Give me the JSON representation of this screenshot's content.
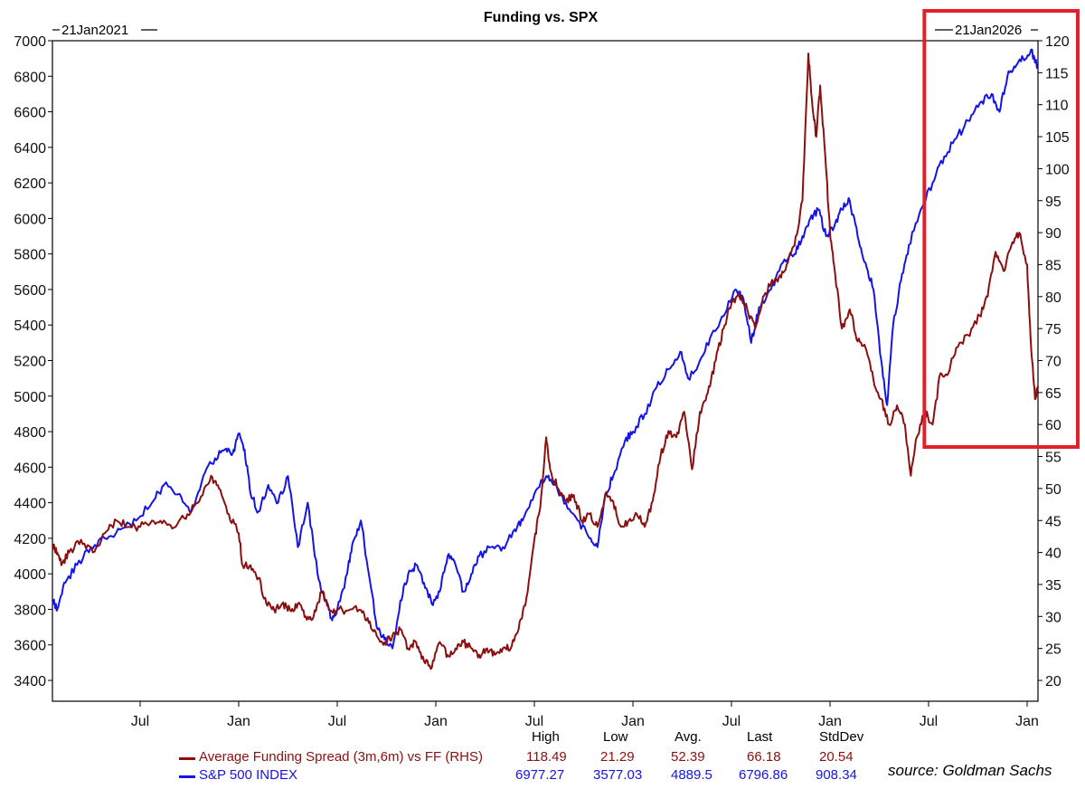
{
  "chart_data": {
    "type": "line",
    "title": "Funding vs. SPX",
    "start_date_label": "21Jan2021",
    "end_date_label": "21Jan2026",
    "x_tick_labels": [
      "Jul",
      "Jan",
      "Jul",
      "Jan",
      "Jul",
      "Jan",
      "Jul",
      "Jan",
      "Jul",
      "Jan"
    ],
    "x_tick_dates": [
      2021.5,
      2022.0,
      2022.5,
      2023.0,
      2023.5,
      2024.0,
      2024.5,
      2025.0,
      2025.5,
      2026.0
    ],
    "x_range": [
      2021.055,
      2026.055
    ],
    "y_left": {
      "min": 3300,
      "max": 7000,
      "ticks": [
        3400,
        3600,
        3800,
        4000,
        4200,
        4400,
        4600,
        4800,
        5000,
        5200,
        5400,
        5600,
        5800,
        6000,
        6200,
        6400,
        6600,
        6800,
        7000
      ]
    },
    "y_right": {
      "min": 16.6,
      "max": 121.0,
      "ticks": [
        20,
        25,
        30,
        35,
        40,
        45,
        50,
        55,
        60,
        65,
        70,
        75,
        80,
        85,
        90,
        95,
        100,
        105,
        110,
        115,
        120
      ]
    },
    "series": [
      {
        "name": "S&P 500 INDEX",
        "axis": "left",
        "color": "#1414e6",
        "points": [
          [
            2021.055,
            3850
          ],
          [
            2021.08,
            3800
          ],
          [
            2021.12,
            3950
          ],
          [
            2021.18,
            4050
          ],
          [
            2021.25,
            4150
          ],
          [
            2021.32,
            4200
          ],
          [
            2021.4,
            4250
          ],
          [
            2021.48,
            4300
          ],
          [
            2021.56,
            4400
          ],
          [
            2021.62,
            4500
          ],
          [
            2021.7,
            4450
          ],
          [
            2021.76,
            4350
          ],
          [
            2021.82,
            4550
          ],
          [
            2021.88,
            4650
          ],
          [
            2021.93,
            4700
          ],
          [
            2021.97,
            4680
          ],
          [
            2022.0,
            4790
          ],
          [
            2022.03,
            4700
          ],
          [
            2022.06,
            4450
          ],
          [
            2022.1,
            4350
          ],
          [
            2022.15,
            4500
          ],
          [
            2022.2,
            4400
          ],
          [
            2022.25,
            4550
          ],
          [
            2022.3,
            4150
          ],
          [
            2022.35,
            4400
          ],
          [
            2022.4,
            4000
          ],
          [
            2022.44,
            3850
          ],
          [
            2022.47,
            3750
          ],
          [
            2022.5,
            3800
          ],
          [
            2022.55,
            4000
          ],
          [
            2022.58,
            4180
          ],
          [
            2022.62,
            4300
          ],
          [
            2022.66,
            4000
          ],
          [
            2022.7,
            3700
          ],
          [
            2022.74,
            3630
          ],
          [
            2022.78,
            3580
          ],
          [
            2022.82,
            3850
          ],
          [
            2022.86,
            4000
          ],
          [
            2022.9,
            4050
          ],
          [
            2022.94,
            3950
          ],
          [
            2022.98,
            3830
          ],
          [
            2023.02,
            3900
          ],
          [
            2023.06,
            4100
          ],
          [
            2023.1,
            4050
          ],
          [
            2023.14,
            3900
          ],
          [
            2023.18,
            4000
          ],
          [
            2023.22,
            4100
          ],
          [
            2023.28,
            4150
          ],
          [
            2023.34,
            4150
          ],
          [
            2023.4,
            4250
          ],
          [
            2023.44,
            4300
          ],
          [
            2023.5,
            4450
          ],
          [
            2023.56,
            4550
          ],
          [
            2023.6,
            4500
          ],
          [
            2023.66,
            4400
          ],
          [
            2023.72,
            4300
          ],
          [
            2023.78,
            4200
          ],
          [
            2023.82,
            4150
          ],
          [
            2023.86,
            4450
          ],
          [
            2023.9,
            4550
          ],
          [
            2023.96,
            4750
          ],
          [
            2024.0,
            4800
          ],
          [
            2024.06,
            4900
          ],
          [
            2024.12,
            5050
          ],
          [
            2024.18,
            5150
          ],
          [
            2024.24,
            5250
          ],
          [
            2024.28,
            5100
          ],
          [
            2024.34,
            5200
          ],
          [
            2024.4,
            5350
          ],
          [
            2024.46,
            5450
          ],
          [
            2024.52,
            5600
          ],
          [
            2024.56,
            5550
          ],
          [
            2024.6,
            5300
          ],
          [
            2024.64,
            5500
          ],
          [
            2024.7,
            5600
          ],
          [
            2024.76,
            5750
          ],
          [
            2024.82,
            5800
          ],
          [
            2024.86,
            5900
          ],
          [
            2024.9,
            6000
          ],
          [
            2024.94,
            6050
          ],
          [
            2024.98,
            5900
          ],
          [
            2025.02,
            5950
          ],
          [
            2025.06,
            6050
          ],
          [
            2025.1,
            6100
          ],
          [
            2025.14,
            5900
          ],
          [
            2025.18,
            5750
          ],
          [
            2025.22,
            5600
          ],
          [
            2025.26,
            5200
          ],
          [
            2025.29,
            4950
          ],
          [
            2025.32,
            5400
          ],
          [
            2025.36,
            5650
          ],
          [
            2025.4,
            5850
          ],
          [
            2025.46,
            6050
          ],
          [
            2025.52,
            6200
          ],
          [
            2025.58,
            6350
          ],
          [
            2025.64,
            6450
          ],
          [
            2025.7,
            6550
          ],
          [
            2025.76,
            6650
          ],
          [
            2025.82,
            6700
          ],
          [
            2025.86,
            6600
          ],
          [
            2025.9,
            6800
          ],
          [
            2025.94,
            6850
          ],
          [
            2025.98,
            6900
          ],
          [
            2026.02,
            6950
          ],
          [
            2026.055,
            6850
          ]
        ]
      },
      {
        "name": "Average Funding Spread (3m,6m) vs FF (RHS)",
        "axis": "right",
        "color": "#8b0f0f",
        "points": [
          [
            2021.055,
            41
          ],
          [
            2021.08,
            40
          ],
          [
            2021.1,
            38
          ],
          [
            2021.14,
            40
          ],
          [
            2021.2,
            42
          ],
          [
            2021.26,
            40
          ],
          [
            2021.32,
            43
          ],
          [
            2021.38,
            45
          ],
          [
            2021.44,
            44
          ],
          [
            2021.5,
            44
          ],
          [
            2021.56,
            45
          ],
          [
            2021.62,
            45
          ],
          [
            2021.68,
            44
          ],
          [
            2021.74,
            46
          ],
          [
            2021.8,
            48
          ],
          [
            2021.86,
            52
          ],
          [
            2021.9,
            50
          ],
          [
            2021.95,
            46
          ],
          [
            2022.0,
            43
          ],
          [
            2022.02,
            38
          ],
          [
            2022.06,
            38
          ],
          [
            2022.1,
            36
          ],
          [
            2022.14,
            32
          ],
          [
            2022.18,
            31
          ],
          [
            2022.22,
            32
          ],
          [
            2022.26,
            31
          ],
          [
            2022.3,
            32
          ],
          [
            2022.34,
            30
          ],
          [
            2022.38,
            30
          ],
          [
            2022.42,
            34
          ],
          [
            2022.46,
            31
          ],
          [
            2022.5,
            31
          ],
          [
            2022.56,
            31
          ],
          [
            2022.62,
            31
          ],
          [
            2022.66,
            29
          ],
          [
            2022.7,
            27
          ],
          [
            2022.74,
            26
          ],
          [
            2022.78,
            27
          ],
          [
            2022.82,
            28
          ],
          [
            2022.86,
            25
          ],
          [
            2022.9,
            26
          ],
          [
            2022.94,
            23
          ],
          [
            2022.98,
            22
          ],
          [
            2023.02,
            26
          ],
          [
            2023.06,
            24
          ],
          [
            2023.1,
            25
          ],
          [
            2023.14,
            26
          ],
          [
            2023.18,
            25
          ],
          [
            2023.22,
            24
          ],
          [
            2023.26,
            25
          ],
          [
            2023.3,
            24
          ],
          [
            2023.34,
            25
          ],
          [
            2023.38,
            25
          ],
          [
            2023.42,
            28
          ],
          [
            2023.46,
            33
          ],
          [
            2023.5,
            42
          ],
          [
            2023.53,
            47
          ],
          [
            2023.56,
            58
          ],
          [
            2023.58,
            53
          ],
          [
            2023.62,
            50
          ],
          [
            2023.66,
            48
          ],
          [
            2023.7,
            49
          ],
          [
            2023.74,
            45
          ],
          [
            2023.78,
            46
          ],
          [
            2023.82,
            44
          ],
          [
            2023.86,
            49
          ],
          [
            2023.9,
            48
          ],
          [
            2023.94,
            44
          ],
          [
            2023.98,
            45
          ],
          [
            2024.02,
            46
          ],
          [
            2024.06,
            44
          ],
          [
            2024.1,
            48
          ],
          [
            2024.14,
            55
          ],
          [
            2024.18,
            59
          ],
          [
            2024.22,
            58
          ],
          [
            2024.26,
            62
          ],
          [
            2024.3,
            53
          ],
          [
            2024.34,
            62
          ],
          [
            2024.38,
            65
          ],
          [
            2024.42,
            70
          ],
          [
            2024.46,
            75
          ],
          [
            2024.5,
            79
          ],
          [
            2024.54,
            80
          ],
          [
            2024.58,
            78
          ],
          [
            2024.62,
            75
          ],
          [
            2024.66,
            80
          ],
          [
            2024.7,
            82
          ],
          [
            2024.74,
            83
          ],
          [
            2024.78,
            85
          ],
          [
            2024.82,
            88
          ],
          [
            2024.86,
            95
          ],
          [
            2024.89,
            118
          ],
          [
            2024.91,
            110
          ],
          [
            2024.93,
            105
          ],
          [
            2024.95,
            113
          ],
          [
            2024.98,
            100
          ],
          [
            2025.0,
            90
          ],
          [
            2025.02,
            85
          ],
          [
            2025.06,
            75
          ],
          [
            2025.1,
            78
          ],
          [
            2025.14,
            73
          ],
          [
            2025.18,
            72
          ],
          [
            2025.22,
            67
          ],
          [
            2025.26,
            64
          ],
          [
            2025.3,
            60
          ],
          [
            2025.34,
            63
          ],
          [
            2025.38,
            60
          ],
          [
            2025.41,
            52
          ],
          [
            2025.44,
            58
          ],
          [
            2025.48,
            62
          ],
          [
            2025.52,
            60
          ],
          [
            2025.56,
            68
          ],
          [
            2025.6,
            68
          ],
          [
            2025.64,
            72
          ],
          [
            2025.7,
            74
          ],
          [
            2025.76,
            77
          ],
          [
            2025.8,
            80
          ],
          [
            2025.84,
            87
          ],
          [
            2025.88,
            84
          ],
          [
            2025.92,
            88
          ],
          [
            2025.96,
            90
          ],
          [
            2026.0,
            85
          ],
          [
            2026.02,
            72
          ],
          [
            2026.04,
            64
          ],
          [
            2026.055,
            66
          ]
        ]
      }
    ]
  },
  "highlight": {
    "color": "#e3202a",
    "from_date": 2025.497,
    "to_date": 2026.055
  },
  "legend": {
    "headers": [
      "High",
      "Low",
      "Avg.",
      "Last",
      "StdDev"
    ],
    "rows": [
      {
        "name": "Average Funding Spread (3m,6m) vs FF (RHS)",
        "color": "#8b0f0f",
        "values": [
          "118.49",
          "21.29",
          "52.39",
          "66.18",
          "20.54"
        ]
      },
      {
        "name": "S&P 500 INDEX",
        "color": "#1414e6",
        "values": [
          "6977.27",
          "3577.03",
          "4889.5",
          "6796.86",
          "908.34"
        ]
      }
    ]
  },
  "source": "source: Goldman Sachs"
}
